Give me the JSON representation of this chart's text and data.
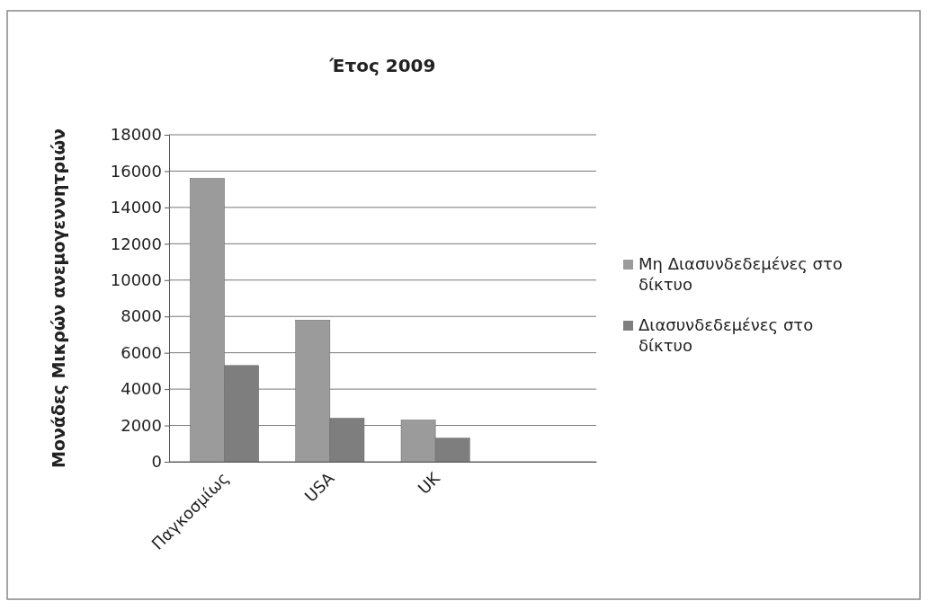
{
  "chart_data": {
    "type": "bar",
    "title": "Έτος 2009",
    "ylabel": "Μονάδες Μικρών ανεμογεννητριών",
    "categories": [
      "Παγκοσμίως",
      "USA",
      "UK",
      null
    ],
    "series": [
      {
        "name": "Μη Διασυνδεδεμένες στο δίκτυο",
        "color": "#9b9b9b",
        "values": [
          15600,
          7800,
          2300,
          null
        ]
      },
      {
        "name": "Διασυνδεδεμένες στο δίκτυο",
        "color": "#7e7e7e",
        "values": [
          5300,
          2400,
          1300,
          null
        ]
      }
    ],
    "ylim": [
      0,
      18000
    ],
    "yticks": [
      0,
      2000,
      4000,
      6000,
      8000,
      10000,
      12000,
      14000,
      16000,
      18000
    ],
    "grid": "y",
    "legend": "right"
  }
}
